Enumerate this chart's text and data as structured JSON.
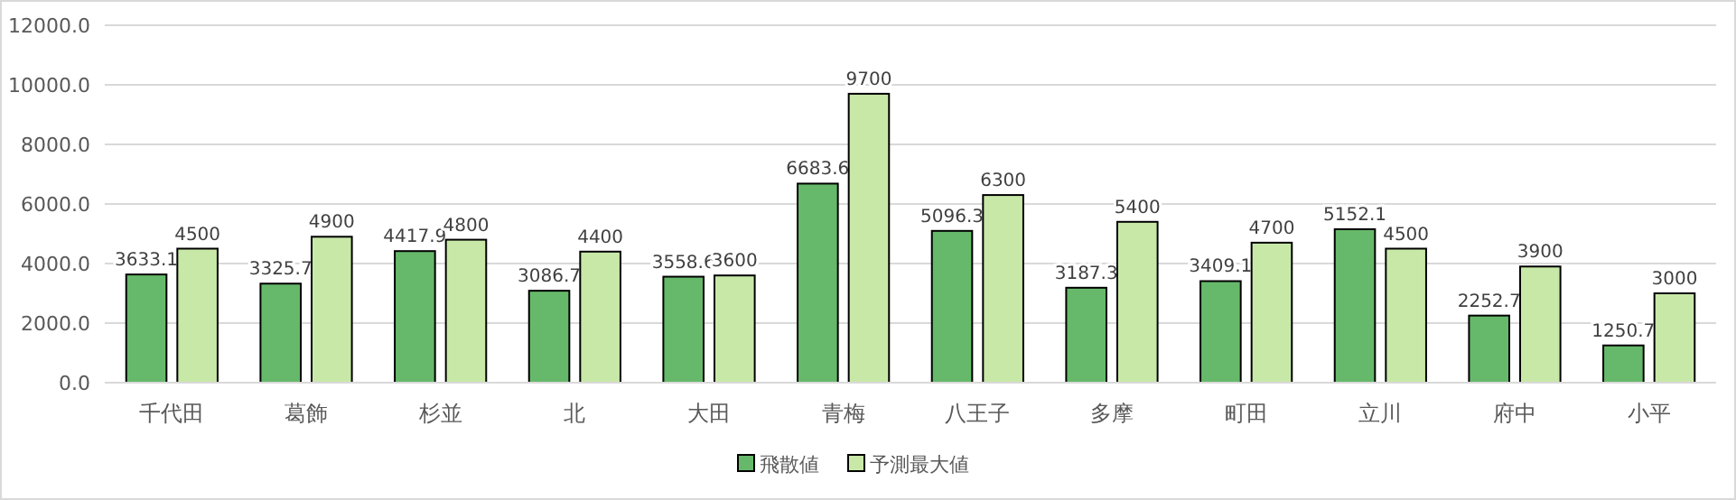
{
  "chart_data": {
    "type": "bar",
    "categories": [
      "千代田",
      "葛飾",
      "杉並",
      "北",
      "大田",
      "青梅",
      "八王子",
      "多摩",
      "町田",
      "立川",
      "府中",
      "小平"
    ],
    "series": [
      {
        "name": "飛散値",
        "color": "#66b96a",
        "values": [
          3633.1,
          3325.7,
          4417.9,
          3086.7,
          3558.6,
          6683.6,
          5096.3,
          3187.3,
          3409.1,
          5152.1,
          2252.7,
          1250.7
        ]
      },
      {
        "name": "予測最大値",
        "color": "#c8e8a8",
        "values": [
          4500,
          4900,
          4800,
          4400,
          3600,
          9700,
          6300,
          5400,
          4700,
          4500,
          3900,
          3000
        ]
      }
    ],
    "ylim": [
      0,
      12000
    ],
    "yticks": [
      {
        "value": 0,
        "label": "0.0"
      },
      {
        "value": 2000,
        "label": "2000.0"
      },
      {
        "value": 4000,
        "label": "4000.0"
      },
      {
        "value": 6000,
        "label": "6000.0"
      },
      {
        "value": 8000,
        "label": "8000.0"
      },
      {
        "value": 10000,
        "label": "10000.0"
      },
      {
        "value": 12000,
        "label": "12000.0"
      }
    ],
    "grid": "y",
    "legend": "bottom",
    "data_labels": true
  }
}
